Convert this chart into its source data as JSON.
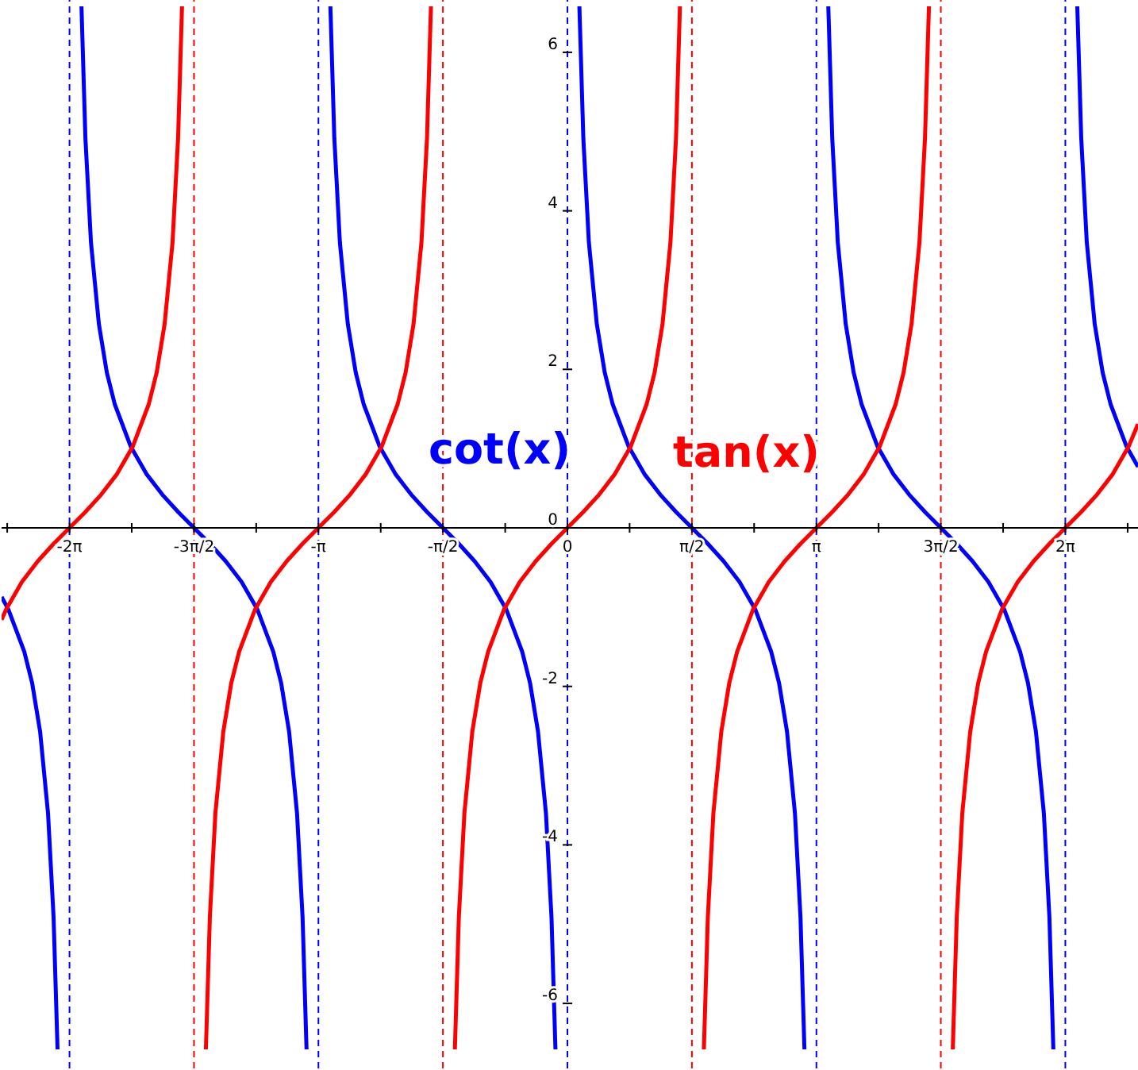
{
  "chart_data": {
    "type": "line",
    "xlim": [
      -7.14,
      7.2
    ],
    "ylim": [
      -6.82,
      6.66
    ],
    "xticks": [
      {
        "value": -7.069,
        "label": null
      },
      {
        "value": -6.283,
        "label": "-2π"
      },
      {
        "value": -5.498,
        "label": null
      },
      {
        "value": -4.712,
        "label": "-3π/2"
      },
      {
        "value": -3.927,
        "label": null
      },
      {
        "value": -3.142,
        "label": "-π"
      },
      {
        "value": -2.356,
        "label": null
      },
      {
        "value": -1.571,
        "label": "-π/2"
      },
      {
        "value": -0.785,
        "label": null
      },
      {
        "value": 0,
        "label": "0"
      },
      {
        "value": 0.785,
        "label": null
      },
      {
        "value": 1.571,
        "label": "π/2"
      },
      {
        "value": 2.356,
        "label": null
      },
      {
        "value": 3.142,
        "label": "π"
      },
      {
        "value": 3.927,
        "label": null
      },
      {
        "value": 4.712,
        "label": "3π/2"
      },
      {
        "value": 5.498,
        "label": null
      },
      {
        "value": 6.283,
        "label": "2π"
      },
      {
        "value": 7.069,
        "label": null
      }
    ],
    "yticks": [
      -6,
      -4,
      -2,
      0,
      2,
      4,
      6
    ],
    "grid": false,
    "legend": false,
    "marker": "none",
    "line_style": "solid",
    "ref_lines": [
      {
        "axis": "x",
        "value": -6.283,
        "color": "#0000ff",
        "line_style": "dashed"
      },
      {
        "axis": "x",
        "value": -4.712,
        "color": "#ff0000",
        "line_style": "dashed"
      },
      {
        "axis": "x",
        "value": -3.142,
        "color": "#0000ff",
        "line_style": "dashed"
      },
      {
        "axis": "x",
        "value": -1.571,
        "color": "#ff0000",
        "line_style": "dashed"
      },
      {
        "axis": "x",
        "value": 0,
        "color": "#0000ff",
        "line_style": "dashed"
      },
      {
        "axis": "x",
        "value": 1.571,
        "color": "#ff0000",
        "line_style": "dashed"
      },
      {
        "axis": "x",
        "value": 3.142,
        "color": "#0000ff",
        "line_style": "dashed"
      },
      {
        "axis": "x",
        "value": 4.712,
        "color": "#ff0000",
        "line_style": "dashed"
      },
      {
        "axis": "x",
        "value": 6.283,
        "color": "#0000ff",
        "line_style": "dashed"
      }
    ],
    "series": [
      {
        "name": "cot(x)",
        "color": "#0000ff",
        "x": [
          -7.14,
          -7.054,
          -6.854,
          -6.754,
          -6.654,
          -6.554,
          -6.484,
          -6.434,
          -6.283,
          -6.132,
          -6.082,
          -6.012,
          -5.912,
          -5.812,
          -5.712,
          -5.512,
          -5.312,
          -5.112,
          -4.912,
          -4.712,
          -4.512,
          -4.312,
          -4.112,
          -3.912,
          -3.712,
          -3.612,
          -3.512,
          -3.412,
          -3.342,
          -3.292,
          -3.142,
          -2.991,
          -2.941,
          -2.871,
          -2.771,
          -2.671,
          -2.571,
          -2.371,
          -2.171,
          -1.971,
          -1.771,
          -1.571,
          -1.371,
          -1.171,
          -0.971,
          -0.771,
          -0.571,
          -0.471,
          -0.371,
          -0.271,
          -0.201,
          -0.151,
          0,
          0.151,
          0.201,
          0.271,
          0.371,
          0.471,
          0.571,
          0.771,
          0.971,
          1.171,
          1.371,
          1.571,
          1.771,
          1.971,
          2.171,
          2.371,
          2.571,
          2.671,
          2.771,
          2.871,
          2.941,
          2.991,
          3.142,
          3.292,
          3.342,
          3.412,
          3.512,
          3.612,
          3.712,
          3.912,
          4.112,
          4.312,
          4.512,
          4.712,
          4.912,
          5.112,
          5.312,
          5.512,
          5.712,
          5.812,
          5.912,
          6.012,
          6.082,
          6.132,
          6.283,
          6.434,
          6.484,
          6.554,
          6.654,
          6.754,
          6.854,
          7.054,
          7.2
        ],
        "values": [
          -0.87,
          -1.03,
          -1.56,
          -1.96,
          -2.57,
          -3.6,
          -4.91,
          -6.58,
          null,
          6.58,
          4.91,
          3.6,
          2.57,
          1.96,
          1.56,
          1.03,
          0.68,
          0.42,
          0.2,
          0,
          -0.2,
          -0.42,
          -0.68,
          -1.03,
          -1.56,
          -1.96,
          -2.57,
          -3.6,
          -4.91,
          -6.58,
          null,
          6.58,
          4.91,
          3.6,
          2.57,
          1.96,
          1.56,
          1.03,
          0.68,
          0.42,
          0.2,
          0,
          -0.2,
          -0.42,
          -0.68,
          -1.03,
          -1.56,
          -1.96,
          -2.57,
          -3.6,
          -4.91,
          -6.58,
          null,
          6.58,
          4.91,
          3.6,
          2.57,
          1.96,
          1.56,
          1.03,
          0.68,
          0.42,
          0.2,
          0,
          -0.2,
          -0.42,
          -0.68,
          -1.03,
          -1.56,
          -1.96,
          -2.57,
          -3.6,
          -4.91,
          -6.58,
          null,
          6.58,
          4.91,
          3.6,
          2.57,
          1.96,
          1.56,
          1.03,
          0.68,
          0.42,
          0.2,
          0,
          -0.2,
          -0.42,
          -0.68,
          -1.03,
          -1.56,
          -1.96,
          -2.57,
          -3.6,
          -4.91,
          -6.58,
          null,
          6.58,
          4.91,
          3.6,
          2.57,
          1.96,
          1.56,
          1.03,
          0.77
        ]
      },
      {
        "name": "tan(x)",
        "color": "#ff0000",
        "x": [
          -7.14,
          -7.083,
          -6.883,
          -6.683,
          -6.483,
          -6.283,
          -6.083,
          -5.883,
          -5.683,
          -5.483,
          -5.283,
          -5.183,
          -5.083,
          -4.983,
          -4.913,
          -4.863,
          -4.712,
          -4.562,
          -4.512,
          -4.442,
          -4.342,
          -4.242,
          -4.142,
          -3.942,
          -3.742,
          -3.542,
          -3.342,
          -3.142,
          -2.942,
          -2.742,
          -2.542,
          -2.342,
          -2.142,
          -2.042,
          -1.942,
          -1.842,
          -1.772,
          -1.722,
          -1.571,
          -1.42,
          -1.37,
          -1.3,
          -1.2,
          -1.1,
          -1,
          -0.8,
          -0.6,
          -0.4,
          -0.2,
          0,
          0.2,
          0.4,
          0.6,
          0.8,
          1,
          1.1,
          1.2,
          1.3,
          1.37,
          1.42,
          1.571,
          1.722,
          1.772,
          1.842,
          1.942,
          2.042,
          2.142,
          2.342,
          2.542,
          2.742,
          2.942,
          3.142,
          3.342,
          3.542,
          3.742,
          3.942,
          4.142,
          4.242,
          4.342,
          4.442,
          4.512,
          4.562,
          4.712,
          4.863,
          4.913,
          4.983,
          5.083,
          5.183,
          5.283,
          5.483,
          5.683,
          5.883,
          6.083,
          6.283,
          6.483,
          6.683,
          6.883,
          7.083,
          7.2
        ],
        "values": [
          -1.16,
          -1.03,
          -0.68,
          -0.42,
          -0.2,
          0,
          0.2,
          0.42,
          0.68,
          1.03,
          1.56,
          1.96,
          2.57,
          3.6,
          4.91,
          6.58,
          null,
          -6.58,
          -4.91,
          -3.6,
          -2.57,
          -1.96,
          -1.56,
          -1.03,
          -0.68,
          -0.42,
          -0.2,
          0,
          0.2,
          0.42,
          0.68,
          1.03,
          1.56,
          1.96,
          2.57,
          3.6,
          4.91,
          6.58,
          null,
          -6.58,
          -4.91,
          -3.6,
          -2.57,
          -1.96,
          -1.56,
          -1.03,
          -0.68,
          -0.42,
          -0.2,
          0,
          0.2,
          0.42,
          0.68,
          1.03,
          1.56,
          1.96,
          2.57,
          3.6,
          4.91,
          6.58,
          null,
          -6.58,
          -4.91,
          -3.6,
          -2.57,
          -1.96,
          -1.56,
          -1.03,
          -0.68,
          -0.42,
          -0.2,
          0,
          0.2,
          0.42,
          0.68,
          1.03,
          1.56,
          1.96,
          2.57,
          3.6,
          4.91,
          6.58,
          null,
          -6.58,
          -4.91,
          -3.6,
          -2.57,
          -1.96,
          -1.56,
          -1.03,
          -0.68,
          -0.42,
          -0.2,
          0,
          0.2,
          0.42,
          0.68,
          1.03,
          1.31
        ]
      }
    ]
  }
}
